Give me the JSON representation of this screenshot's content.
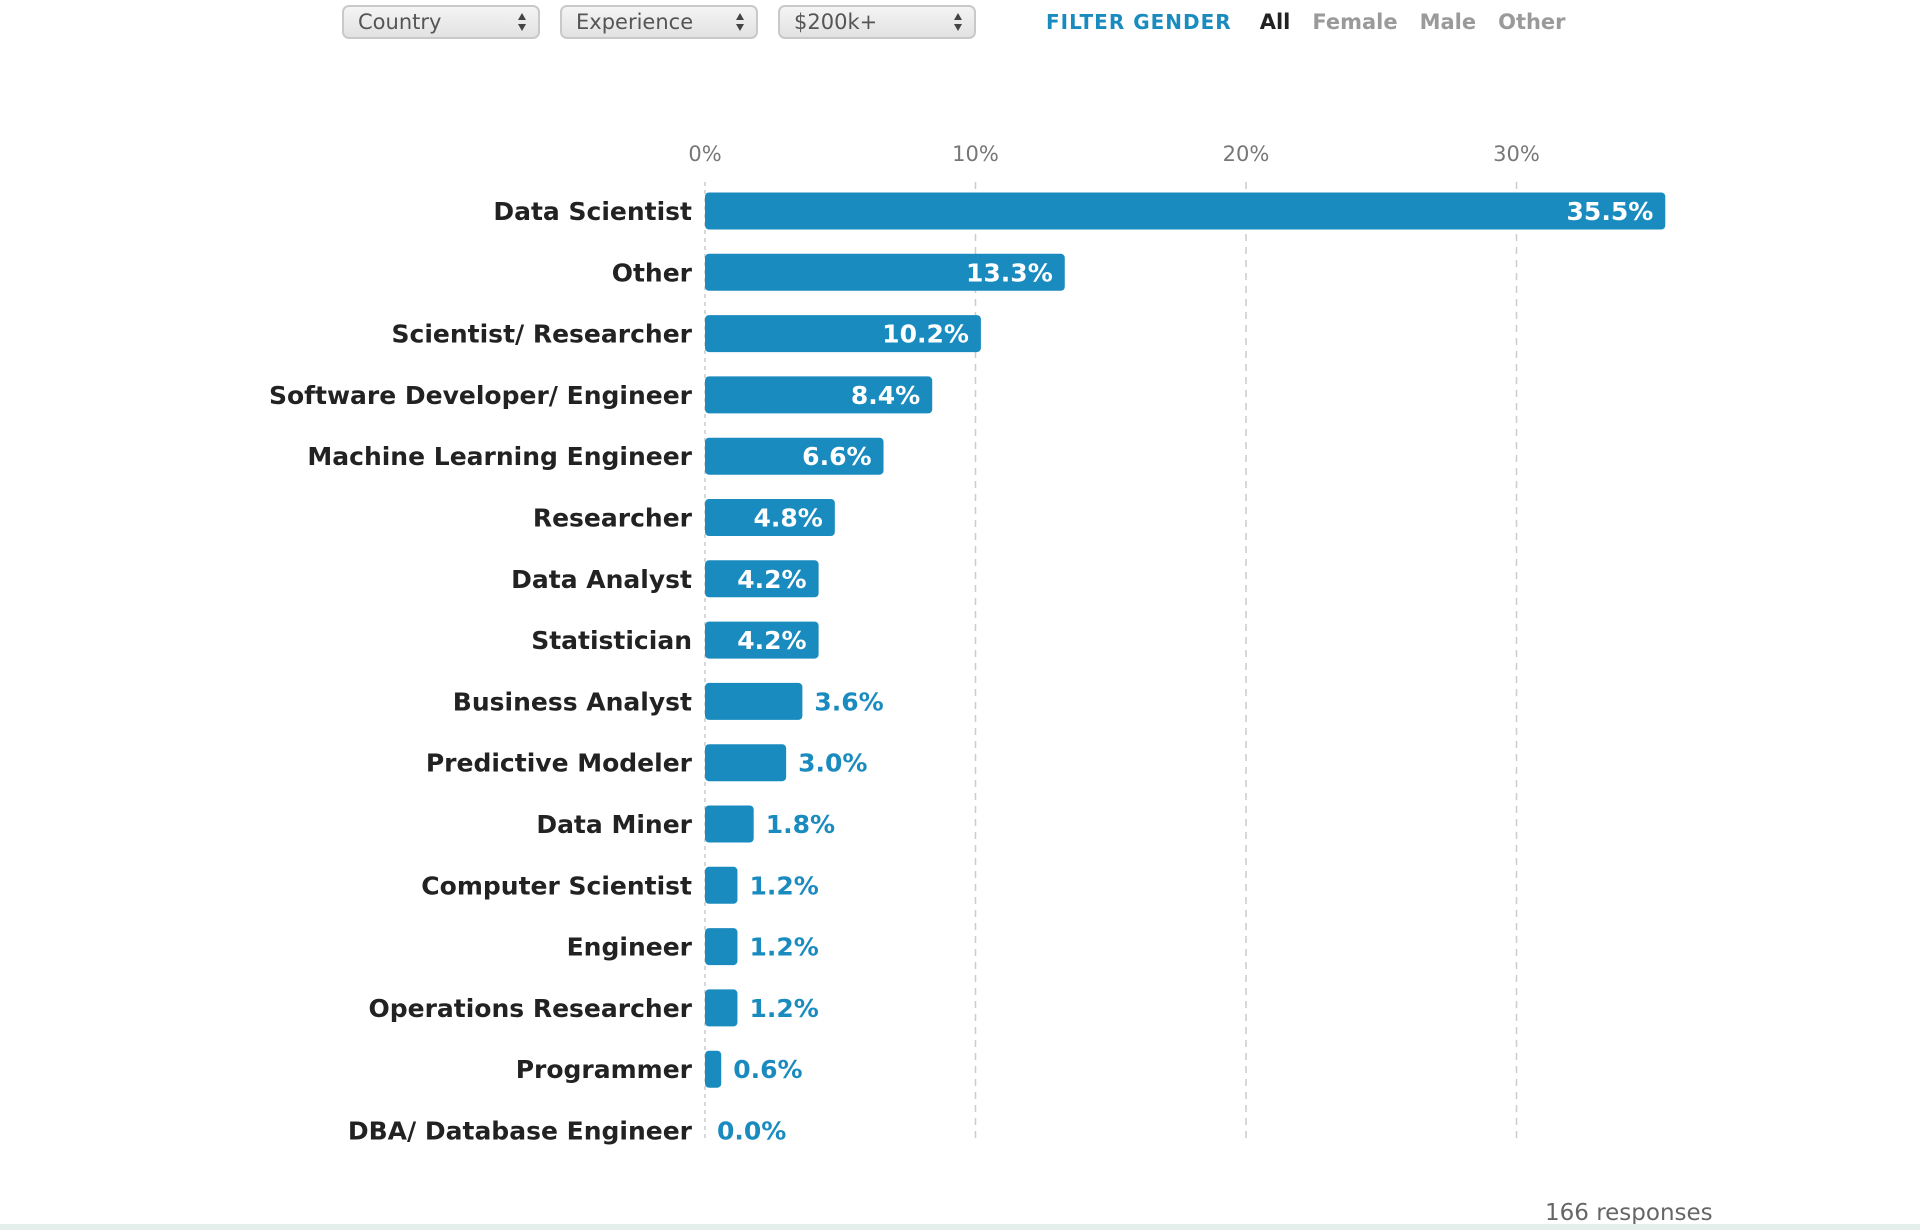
{
  "filters": {
    "country": "Country",
    "experience": "Experience",
    "salary": "$200k+"
  },
  "gender_filter": {
    "label": "FILTER GENDER",
    "options": [
      "All",
      "Female",
      "Male",
      "Other"
    ],
    "selected": "All"
  },
  "footer": {
    "responses": "166 responses"
  },
  "colors": {
    "bar": "#1a8bbf",
    "label_outside": "#1a8bbf",
    "label_inside": "#ffffff",
    "category_text": "#222222",
    "grid": "#cccccc"
  },
  "chart_data": {
    "type": "bar",
    "orientation": "horizontal",
    "categories": [
      "Data Scientist",
      "Other",
      "Scientist/ Researcher",
      "Software Developer/ Engineer",
      "Machine Learning Engineer",
      "Researcher",
      "Data Analyst",
      "Statistician",
      "Business Analyst",
      "Predictive Modeler",
      "Data Miner",
      "Computer Scientist",
      "Engineer",
      "Operations Researcher",
      "Programmer",
      "DBA/ Database Engineer"
    ],
    "values": [
      35.5,
      13.3,
      10.2,
      8.4,
      6.6,
      4.8,
      4.2,
      4.2,
      3.6,
      3.0,
      1.8,
      1.2,
      1.2,
      1.2,
      0.6,
      0.0
    ],
    "value_labels": [
      "35.5%",
      "13.3%",
      "10.2%",
      "8.4%",
      "6.6%",
      "4.8%",
      "4.2%",
      "4.2%",
      "3.6%",
      "3.0%",
      "1.8%",
      "1.2%",
      "1.2%",
      "1.2%",
      "0.6%",
      "0.0%"
    ],
    "x_ticks": [
      0,
      10,
      20,
      30
    ],
    "x_tick_labels": [
      "0%",
      "10%",
      "20%",
      "30%"
    ],
    "xlim": [
      0,
      36
    ],
    "grid": "vertical dashed",
    "axis_position": "top"
  }
}
